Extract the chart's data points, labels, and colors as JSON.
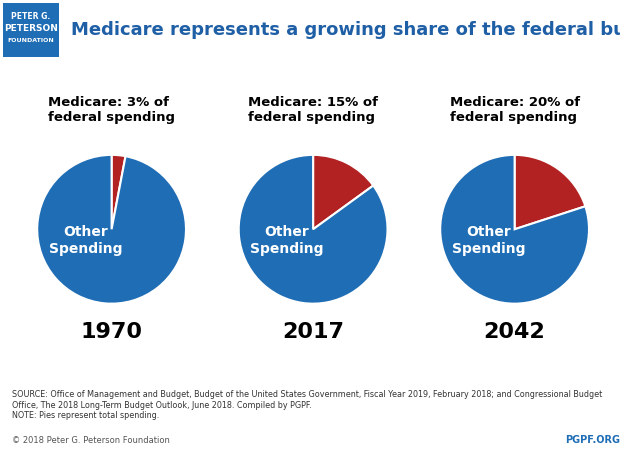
{
  "title": "Medicare represents a growing share of the federal budget",
  "title_color": "#1f5fa6",
  "background_color": "#ffffff",
  "pies": [
    {
      "year": "1970",
      "label": "Medicare: 3% of\nfederal spending",
      "medicare_pct": 3,
      "other_pct": 97
    },
    {
      "year": "2017",
      "label": "Medicare: 15% of\nfederal spending",
      "medicare_pct": 15,
      "other_pct": 85
    },
    {
      "year": "2042",
      "label": "Medicare: 20% of\nfederal spending",
      "medicare_pct": 20,
      "other_pct": 80
    }
  ],
  "medicare_color": "#b22222",
  "other_color": "#1f6db5",
  "other_label": "Other\nSpending",
  "other_label_color": "#ffffff",
  "year_fontsize": 16,
  "label_fontsize": 9.5,
  "other_fontsize": 10,
  "source_text": "SOURCE: Office of Management and Budget, Budget of the United States Government, Fiscal Year 2019, February 2018; and Congressional Budget\nOffice, The 2018 Long-Term Budget Outlook, June 2018. Compiled by PGPF.\nNOTE: Pies represent total spending.",
  "copyright_text": "© 2018 Peter G. Peterson Foundation",
  "pgpf_text": "PGPF.ORG",
  "footer_color": "#1f6db5",
  "header_bg_color": "#1f6db5",
  "logo_area_color": "#1f5fa6"
}
